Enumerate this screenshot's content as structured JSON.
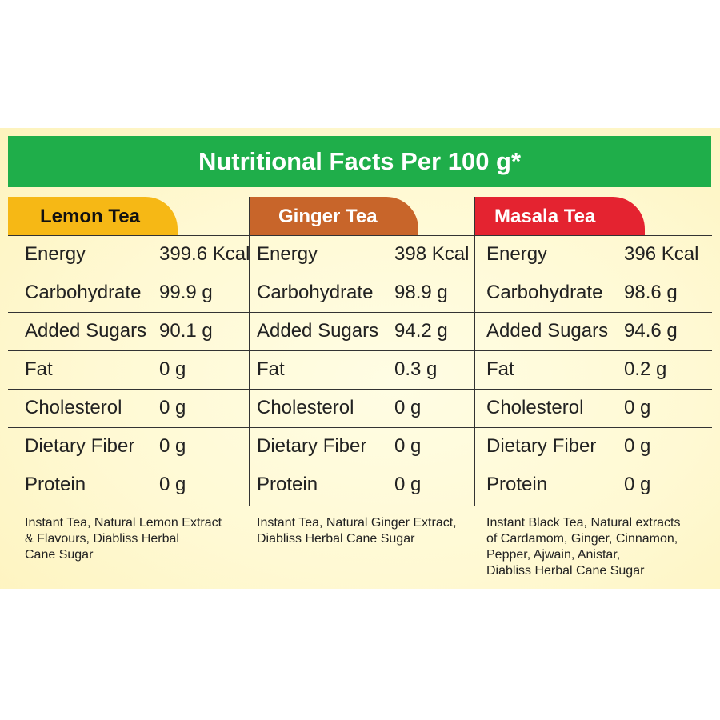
{
  "title": "Nutritional Facts Per 100 g*",
  "columns": [
    {
      "name": "Lemon Tea",
      "color": "#f6b815",
      "rows": [
        {
          "label": "Energy",
          "value": "399.6 Kcal"
        },
        {
          "label": "Carbohydrate",
          "value": "99.9 g"
        },
        {
          "label": "Added Sugars",
          "value": "90.1 g"
        },
        {
          "label": "Fat",
          "value": "0 g"
        },
        {
          "label": "Cholesterol",
          "value": "0 g"
        },
        {
          "label": "Dietary Fiber",
          "value": "0 g"
        },
        {
          "label": "Protein",
          "value": "0 g"
        }
      ],
      "ingredients": [
        "Instant Tea, Natural Lemon Extract",
        "& Flavours, Diabliss Herbal",
        "Cane Sugar"
      ]
    },
    {
      "name": "Ginger Tea",
      "color": "#c8652a",
      "rows": [
        {
          "label": "Energy",
          "value": "398 Kcal"
        },
        {
          "label": "Carbohydrate",
          "value": "98.9 g"
        },
        {
          "label": "Added Sugars",
          "value": "94.2 g"
        },
        {
          "label": "Fat",
          "value": "0.3 g"
        },
        {
          "label": "Cholesterol",
          "value": "0 g"
        },
        {
          "label": "Dietary Fiber",
          "value": "0 g"
        },
        {
          "label": "Protein",
          "value": "0 g"
        }
      ],
      "ingredients": [
        "Instant Tea, Natural Ginger Extract,",
        "Diabliss Herbal Cane Sugar"
      ]
    },
    {
      "name": "Masala Tea",
      "color": "#e42330",
      "rows": [
        {
          "label": "Energy",
          "value": "396 Kcal"
        },
        {
          "label": "Carbohydrate",
          "value": "98.6 g"
        },
        {
          "label": "Added Sugars",
          "value": "94.6 g"
        },
        {
          "label": "Fat",
          "value": "0.2 g"
        },
        {
          "label": "Cholesterol",
          "value": "0 g"
        },
        {
          "label": "Dietary Fiber",
          "value": "0 g"
        },
        {
          "label": "Protein",
          "value": "0 g"
        }
      ],
      "ingredients": [
        "Instant Black Tea, Natural extracts",
        "of Cardamom, Ginger, Cinnamon,",
        "Pepper, Ajwain, Anistar,",
        "Diabliss Herbal Cane Sugar"
      ]
    }
  ]
}
